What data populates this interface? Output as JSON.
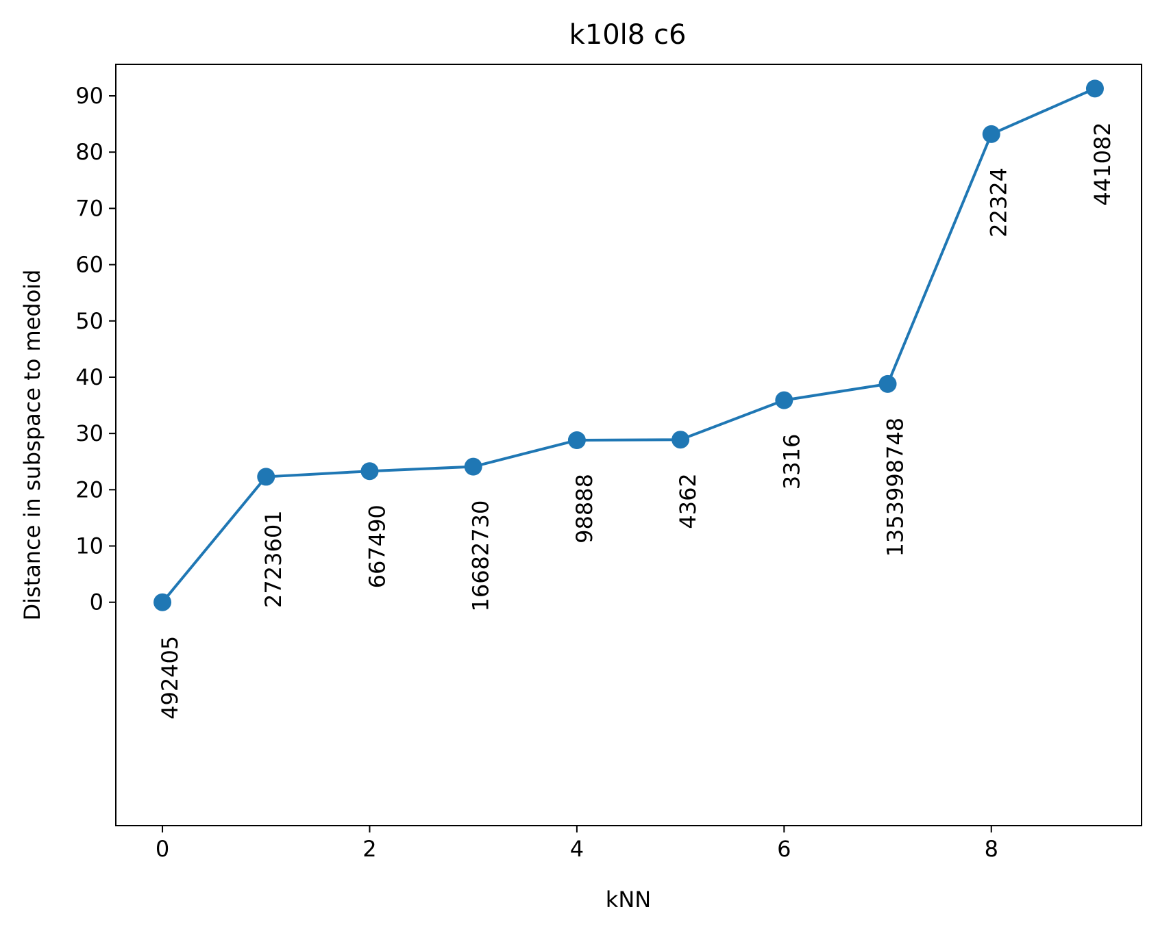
{
  "chart_data": {
    "type": "line",
    "title": "k10l8 c6",
    "xlabel": "kNN",
    "ylabel": "Distance in subspace to medoid",
    "xlim": [
      -0.45,
      9.45
    ],
    "ylim": [
      -39.7,
      95.6
    ],
    "xticks": [
      0,
      2,
      4,
      6,
      8
    ],
    "yticks": [
      0,
      10,
      20,
      30,
      40,
      50,
      60,
      70,
      80,
      90
    ],
    "grid": false,
    "marker": "circle",
    "color": "#1f77b4",
    "x": [
      0,
      1,
      2,
      3,
      4,
      5,
      6,
      7,
      8,
      9
    ],
    "y": [
      0,
      22.3,
      23.3,
      24.1,
      28.8,
      28.9,
      35.9,
      38.8,
      83.2,
      91.3
    ],
    "point_labels": [
      "492405",
      "2723601",
      "667490",
      "16682730",
      "98888",
      "4362",
      "3316",
      "1353998748",
      "22324",
      "441082"
    ]
  }
}
